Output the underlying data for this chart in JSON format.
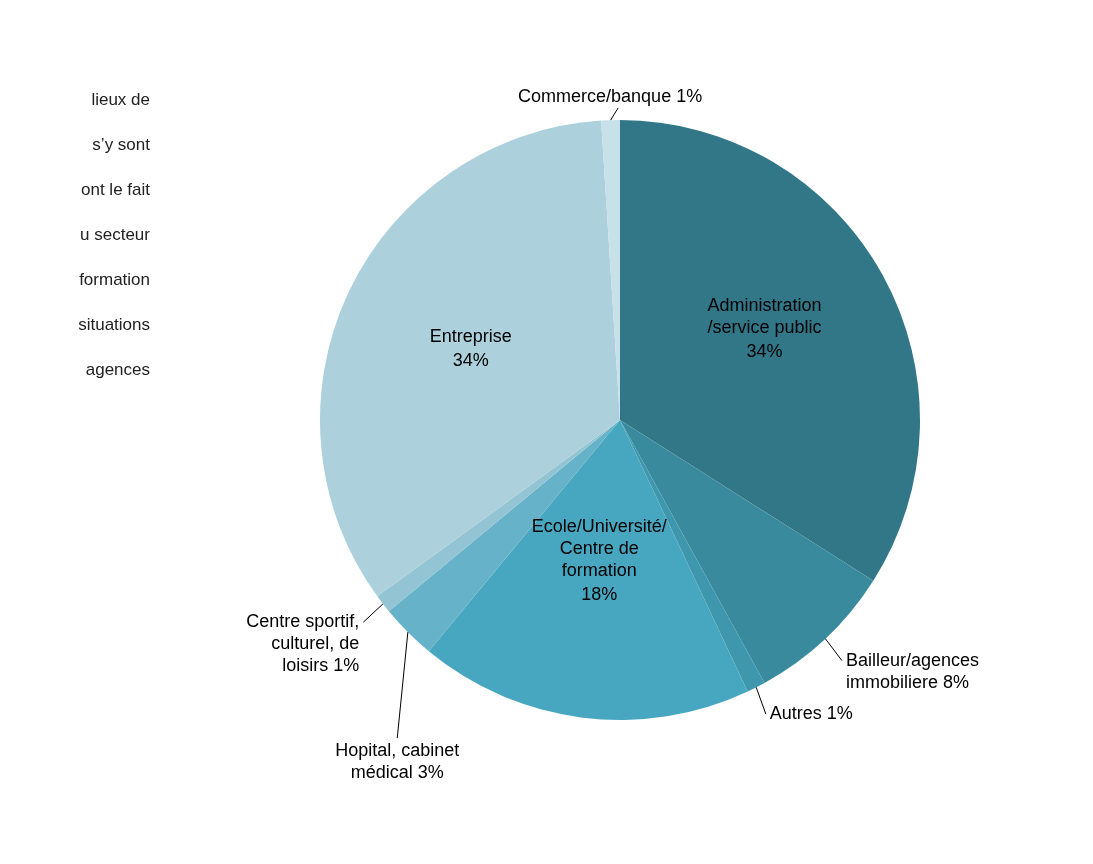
{
  "chart_data": {
    "type": "pie",
    "categories": [
      "Administration /service public",
      "Bailleur/agences immobiliere",
      "Autres",
      "Ecole/Université/Centre de formation",
      "Hopital, cabinet médical",
      "Centre sportif, culturel, de loisirs",
      "Entreprise",
      "Commerce/banque"
    ],
    "values": [
      34,
      8,
      1,
      18,
      3,
      1,
      34,
      1
    ],
    "value_labels": [
      "34%",
      "8%",
      "1%",
      "18%",
      "3%",
      "1%",
      "34%",
      "1%"
    ],
    "colors": [
      "#327788",
      "#3a8a9e",
      "#3e97ad",
      "#48a7c0",
      "#66b3c9",
      "#92c4d3",
      "#acd0dc",
      "#c8e0e8"
    ],
    "annotations": [
      "lieux de",
      "s’y sont",
      "ont le fait",
      "u secteur",
      "formation",
      "situations",
      "agences"
    ]
  }
}
